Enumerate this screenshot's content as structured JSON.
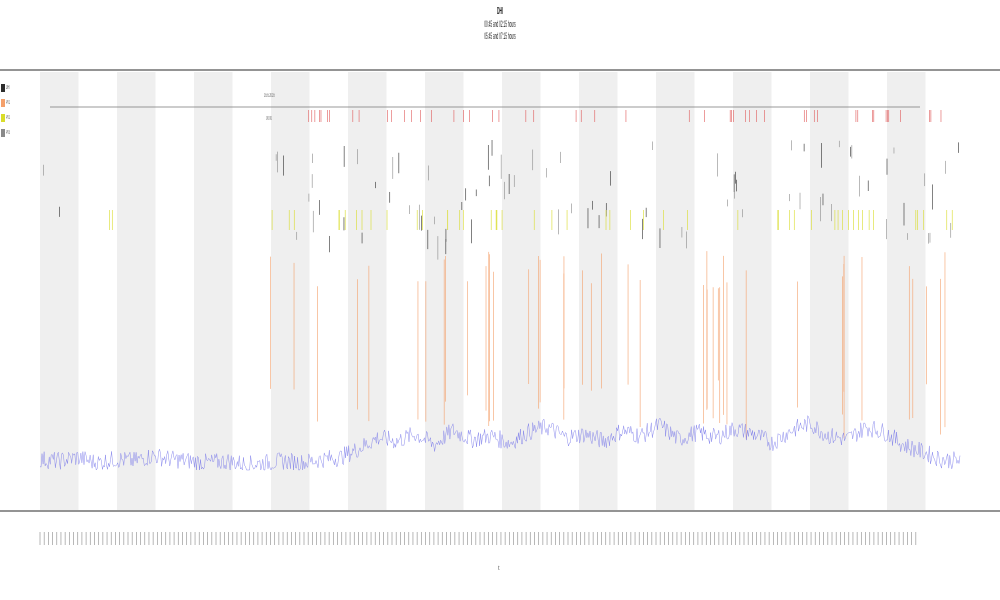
{
  "chart_data": {
    "type": "line",
    "title": "DHI",
    "subtitle_lines": [
      "00:45 and 02:15 hours",
      "05:45 and 07:15 hours"
    ],
    "xlabel": "t",
    "ylabel": "",
    "grid": false,
    "band_shading": true,
    "legend_placement": "left",
    "series": [
      {
        "name": "DHI",
        "color": "#2d2d2d"
      },
      {
        "name": "PV1",
        "color": "#f4a06b"
      },
      {
        "name": "PV2",
        "color": "#d9dc2a"
      },
      {
        "name": "PV3",
        "color": "#8a8a8a"
      }
    ],
    "baseline_series": {
      "color": "#6f6fe8",
      "values": [
        6,
        5,
        7,
        4,
        6,
        5,
        8,
        6,
        5,
        4,
        5,
        3,
        4,
        5,
        4,
        6,
        7,
        12,
        18,
        16,
        20,
        14,
        22,
        17,
        19,
        15,
        21,
        24,
        18,
        20,
        16,
        22,
        19,
        25,
        17,
        21,
        18,
        23,
        20,
        15,
        22,
        26,
        19,
        17,
        24,
        21,
        14,
        10,
        6,
        5
      ]
    },
    "upper_track_labels": [
      "16.6.2016",
      "00:00"
    ],
    "ylim": [
      0,
      100
    ]
  }
}
